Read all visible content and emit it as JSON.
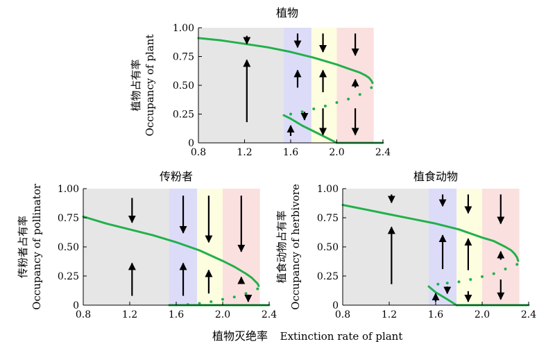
{
  "figure": {
    "xlabel_cn": "植物灭绝率",
    "xlabel_en": "Extinction rate of plant"
  },
  "colors": {
    "curve": "#22b04b",
    "arrow": "#000000",
    "band_gray": "#e6e6e6",
    "band_blue": "#dcdcf8",
    "band_yellow": "#fdfde0",
    "band_pink": "#fbe0e0"
  },
  "chart_data": [
    {
      "type": "line",
      "title": "植物",
      "ylabel_cn": "植物占有率",
      "ylabel_en": "Occupancy of plant",
      "xlim": [
        0.8,
        2.4
      ],
      "ylim": [
        0,
        1
      ],
      "xticks": [
        "0.8",
        "1.2",
        "1.6",
        "2.0",
        "2.4"
      ],
      "yticks": [
        "0",
        "0.25",
        "0.50",
        "0.75",
        "1.00"
      ],
      "regions": [
        {
          "name": "gray",
          "x": [
            0.8,
            1.54
          ]
        },
        {
          "name": "blue",
          "x": [
            1.54,
            1.78
          ]
        },
        {
          "name": "yellow",
          "x": [
            1.78,
            2.0
          ]
        },
        {
          "name": "pink",
          "x": [
            2.0,
            2.32
          ]
        }
      ],
      "series": [
        {
          "style": "stable",
          "x": [
            0.8,
            1.0,
            1.2,
            1.4,
            1.6,
            1.8,
            2.0,
            2.1,
            2.2,
            2.25,
            2.28,
            2.3,
            2.31
          ],
          "y": [
            0.91,
            0.89,
            0.86,
            0.83,
            0.79,
            0.74,
            0.68,
            0.645,
            0.61,
            0.585,
            0.565,
            0.54,
            0.52
          ]
        },
        {
          "style": "unstable",
          "x": [
            1.6,
            1.7,
            1.8,
            1.9,
            2.0,
            2.1,
            2.2,
            2.3
          ],
          "y": [
            0.25,
            0.27,
            0.295,
            0.32,
            0.35,
            0.38,
            0.42,
            0.48
          ]
        },
        {
          "style": "stable",
          "x": [
            1.54,
            1.6,
            1.7,
            1.8,
            1.9,
            2.0
          ],
          "y": [
            0.24,
            0.21,
            0.15,
            0.1,
            0.05,
            0
          ]
        },
        {
          "style": "stable",
          "x": [
            2.0,
            2.4
          ],
          "y": [
            0,
            0
          ]
        }
      ],
      "arrows": [
        {
          "x": 1.22,
          "from": 0.18,
          "to": 0.72
        },
        {
          "x": 1.22,
          "from": 0.93,
          "to": 0.86
        },
        {
          "x": 1.66,
          "from": 0.48,
          "to": 0.63
        },
        {
          "x": 1.66,
          "from": 0.95,
          "to": 0.83
        },
        {
          "x": 1.6,
          "from": 0.06,
          "to": 0.15
        },
        {
          "x": 1.72,
          "from": 0.27,
          "to": 0.2
        },
        {
          "x": 1.88,
          "from": 0.44,
          "to": 0.63
        },
        {
          "x": 1.88,
          "from": 0.95,
          "to": 0.79
        },
        {
          "x": 1.88,
          "from": 0.3,
          "to": 0.07
        },
        {
          "x": 2.16,
          "from": 0.48,
          "to": 0.55
        },
        {
          "x": 2.16,
          "from": 0.95,
          "to": 0.76
        },
        {
          "x": 2.16,
          "from": 0.3,
          "to": 0.07
        }
      ]
    },
    {
      "type": "line",
      "title": "传粉者",
      "ylabel_cn": "传粉者占有率",
      "ylabel_en": "Occupancy of pollinator",
      "xlim": [
        0.8,
        2.4
      ],
      "ylim": [
        0,
        1
      ],
      "xticks": [
        "0.8",
        "1.2",
        "1.6",
        "2.0",
        "2.4"
      ],
      "yticks": [
        "0",
        "0.25",
        "0.50",
        "0.75",
        "1.00"
      ],
      "regions": [
        {
          "name": "gray",
          "x": [
            0.8,
            1.54
          ]
        },
        {
          "name": "blue",
          "x": [
            1.54,
            1.78
          ]
        },
        {
          "name": "yellow",
          "x": [
            1.78,
            2.0
          ]
        },
        {
          "name": "pink",
          "x": [
            2.0,
            2.32
          ]
        }
      ],
      "series": [
        {
          "style": "stable",
          "x": [
            0.8,
            1.0,
            1.2,
            1.4,
            1.6,
            1.8,
            2.0,
            2.1,
            2.2,
            2.25,
            2.28,
            2.3,
            2.31
          ],
          "y": [
            0.76,
            0.7,
            0.65,
            0.6,
            0.54,
            0.47,
            0.38,
            0.33,
            0.27,
            0.235,
            0.205,
            0.185,
            0.165
          ]
        },
        {
          "style": "unstable",
          "x": [
            1.7,
            1.8,
            1.9,
            2.0,
            2.1,
            2.2,
            2.3
          ],
          "y": [
            0.005,
            0.015,
            0.03,
            0.05,
            0.07,
            0.1,
            0.14
          ]
        },
        {
          "style": "stable",
          "x": [
            1.54,
            2.4
          ],
          "y": [
            0,
            0
          ]
        }
      ],
      "arrows": [
        {
          "x": 1.22,
          "from": 0.08,
          "to": 0.36
        },
        {
          "x": 1.22,
          "from": 0.92,
          "to": 0.71
        },
        {
          "x": 1.66,
          "from": 0.08,
          "to": 0.36
        },
        {
          "x": 1.66,
          "from": 0.94,
          "to": 0.62
        },
        {
          "x": 1.88,
          "from": 0.1,
          "to": 0.3
        },
        {
          "x": 1.88,
          "from": 0.94,
          "to": 0.54
        },
        {
          "x": 2.16,
          "from": 0.2,
          "to": 0.24
        },
        {
          "x": 2.16,
          "from": 0.94,
          "to": 0.46
        },
        {
          "x": 2.22,
          "from": 0.09,
          "to": 0.03
        }
      ]
    },
    {
      "type": "line",
      "title": "植食动物",
      "ylabel_cn": "植食动物占有率",
      "ylabel_en": "Occupancy of herbivore",
      "xlim": [
        0.8,
        2.4
      ],
      "ylim": [
        0,
        1
      ],
      "xticks": [
        "0.8",
        "1.2",
        "1.6",
        "2.0",
        "2.4"
      ],
      "yticks": [
        "0",
        "0.25",
        "0.50",
        "0.75",
        "1.00"
      ],
      "regions": [
        {
          "name": "gray",
          "x": [
            0.8,
            1.54
          ]
        },
        {
          "name": "blue",
          "x": [
            1.54,
            1.78
          ]
        },
        {
          "name": "yellow",
          "x": [
            1.78,
            2.0
          ]
        },
        {
          "name": "pink",
          "x": [
            2.0,
            2.32
          ]
        }
      ],
      "series": [
        {
          "style": "stable",
          "x": [
            0.8,
            1.0,
            1.2,
            1.4,
            1.6,
            1.8,
            2.0,
            2.1,
            2.2,
            2.25,
            2.28,
            2.3,
            2.31
          ],
          "y": [
            0.86,
            0.82,
            0.78,
            0.74,
            0.7,
            0.65,
            0.58,
            0.55,
            0.5,
            0.47,
            0.44,
            0.41,
            0.38
          ]
        },
        {
          "style": "unstable",
          "x": [
            1.62,
            1.7,
            1.8,
            1.9,
            2.0,
            2.1,
            2.2,
            2.3
          ],
          "y": [
            0.18,
            0.19,
            0.2,
            0.22,
            0.245,
            0.27,
            0.31,
            0.35
          ]
        },
        {
          "style": "stable",
          "x": [
            1.54,
            1.6,
            1.7,
            1.78
          ],
          "y": [
            0.16,
            0.11,
            0.05,
            0
          ]
        },
        {
          "style": "stable",
          "x": [
            1.78,
            2.4
          ],
          "y": [
            0,
            0
          ]
        }
      ],
      "arrows": [
        {
          "x": 1.22,
          "from": 0.18,
          "to": 0.67
        },
        {
          "x": 1.22,
          "from": 0.95,
          "to": 0.88
        },
        {
          "x": 1.66,
          "from": 0.31,
          "to": 0.6
        },
        {
          "x": 1.66,
          "from": 0.95,
          "to": 0.85
        },
        {
          "x": 1.6,
          "from": 0.03,
          "to": 0.1
        },
        {
          "x": 1.7,
          "from": 0.16,
          "to": 0.1
        },
        {
          "x": 1.88,
          "from": 0.3,
          "to": 0.57
        },
        {
          "x": 1.88,
          "from": 0.95,
          "to": 0.79
        },
        {
          "x": 1.88,
          "from": 0.12,
          "to": 0.03
        },
        {
          "x": 2.16,
          "from": 0.39,
          "to": 0.46
        },
        {
          "x": 2.16,
          "from": 0.95,
          "to": 0.7
        },
        {
          "x": 2.16,
          "from": 0.22,
          "to": 0.05
        }
      ]
    }
  ]
}
